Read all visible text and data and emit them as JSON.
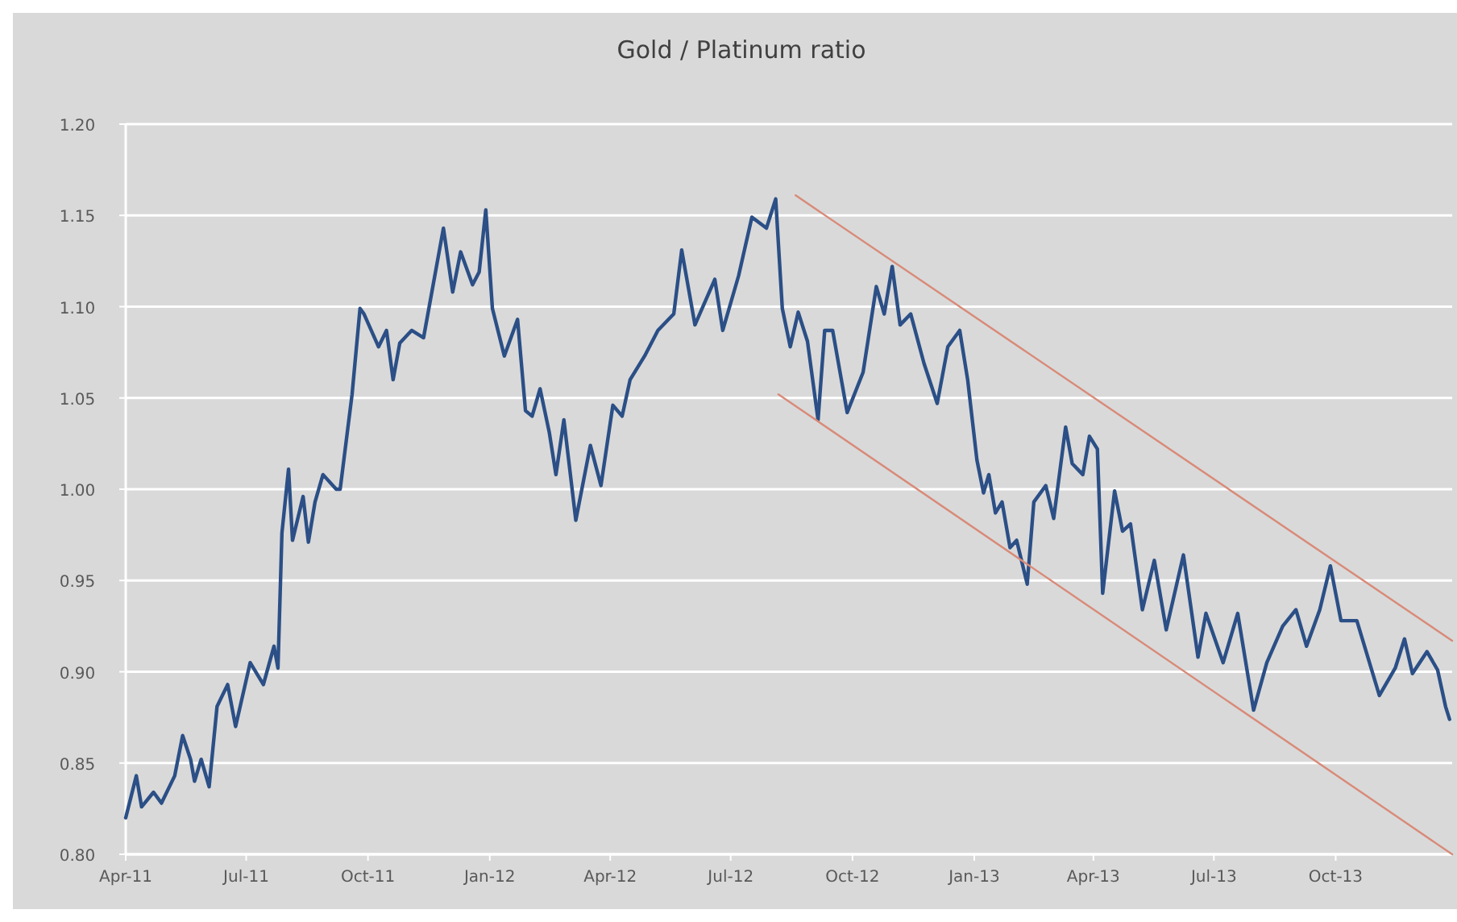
{
  "chart_data": {
    "type": "line",
    "title": "Gold / Platinum ratio",
    "grid": "y",
    "xlim": [
      "2011-04-01",
      "2013-12-28"
    ],
    "xticks": [
      {
        "value": "2011-04-01",
        "label": "Apr-11"
      },
      {
        "value": "2011-07-01",
        "label": "Jul-11"
      },
      {
        "value": "2011-10-01",
        "label": "Oct-11"
      },
      {
        "value": "2012-01-01",
        "label": "Jan-12"
      },
      {
        "value": "2012-04-01",
        "label": "Apr-12"
      },
      {
        "value": "2012-07-01",
        "label": "Jul-12"
      },
      {
        "value": "2012-10-01",
        "label": "Oct-12"
      },
      {
        "value": "2013-01-01",
        "label": "Jan-13"
      },
      {
        "value": "2013-04-01",
        "label": "Apr-13"
      },
      {
        "value": "2013-07-01",
        "label": "Jul-13"
      },
      {
        "value": "2013-10-01",
        "label": "Oct-13"
      }
    ],
    "ylim": [
      0.8,
      1.2
    ],
    "yticks": [
      {
        "value": 0.8,
        "label": "0.80"
      },
      {
        "value": 0.85,
        "label": "0.85"
      },
      {
        "value": 0.9,
        "label": "0.90"
      },
      {
        "value": 0.95,
        "label": "0.95"
      },
      {
        "value": 1.0,
        "label": "1.00"
      },
      {
        "value": 1.05,
        "label": "1.05"
      },
      {
        "value": 1.1,
        "label": "1.10"
      },
      {
        "value": 1.15,
        "label": "1.15"
      },
      {
        "value": 1.2,
        "label": "1.20"
      }
    ],
    "series": [
      {
        "color": "#2b4f86",
        "x": [
          "2011-04-01",
          "2011-04-09",
          "2011-04-13",
          "2011-04-22",
          "2011-04-28",
          "2011-05-08",
          "2011-05-14",
          "2011-05-20",
          "2011-05-23",
          "2011-05-28",
          "2011-06-03",
          "2011-06-09",
          "2011-06-17",
          "2011-06-23",
          "2011-07-04",
          "2011-07-14",
          "2011-07-22",
          "2011-07-25",
          "2011-07-28",
          "2011-08-02",
          "2011-08-05",
          "2011-08-13",
          "2011-08-17",
          "2011-08-22",
          "2011-08-28",
          "2011-09-07",
          "2011-09-10",
          "2011-09-19",
          "2011-09-25",
          "2011-09-28",
          "2011-10-09",
          "2011-10-15",
          "2011-10-20",
          "2011-10-25",
          "2011-11-03",
          "2011-11-12",
          "2011-11-16",
          "2011-11-27",
          "2011-12-04",
          "2011-12-10",
          "2011-12-19",
          "2011-12-24",
          "2011-12-29",
          "2012-01-03",
          "2012-01-12",
          "2012-01-22",
          "2012-01-28",
          "2012-02-02",
          "2012-02-08",
          "2012-02-15",
          "2012-02-20",
          "2012-02-26",
          "2012-03-06",
          "2012-03-17",
          "2012-03-25",
          "2012-04-03",
          "2012-04-10",
          "2012-04-16",
          "2012-04-27",
          "2012-05-07",
          "2012-05-19",
          "2012-05-25",
          "2012-06-04",
          "2012-06-19",
          "2012-06-25",
          "2012-07-07",
          "2012-07-17",
          "2012-07-28",
          "2012-08-04",
          "2012-08-09",
          "2012-08-15",
          "2012-08-21",
          "2012-08-28",
          "2012-09-05",
          "2012-09-10",
          "2012-09-16",
          "2012-09-27",
          "2012-10-09",
          "2012-10-19",
          "2012-10-25",
          "2012-10-31",
          "2012-11-06",
          "2012-11-14",
          "2012-11-24",
          "2012-12-04",
          "2012-12-12",
          "2012-12-21",
          "2012-12-27",
          "2013-01-03",
          "2013-01-08",
          "2013-01-12",
          "2013-01-17",
          "2013-01-22",
          "2013-01-28",
          "2013-02-02",
          "2013-02-10",
          "2013-02-15",
          "2013-02-24",
          "2013-03-02",
          "2013-03-11",
          "2013-03-16",
          "2013-03-24",
          "2013-03-29",
          "2013-04-04",
          "2013-04-08",
          "2013-04-17",
          "2013-04-23",
          "2013-04-29",
          "2013-05-08",
          "2013-05-17",
          "2013-05-26",
          "2013-06-08",
          "2013-06-19",
          "2013-06-25",
          "2013-07-08",
          "2013-07-19",
          "2013-07-31",
          "2013-08-10",
          "2013-08-22",
          "2013-09-01",
          "2013-09-09",
          "2013-09-19",
          "2013-09-27",
          "2013-10-05",
          "2013-10-17",
          "2013-11-03",
          "2013-11-15",
          "2013-11-22",
          "2013-11-28",
          "2013-12-09",
          "2013-12-17",
          "2013-12-23",
          "2013-12-26"
        ],
        "values": [
          0.82,
          0.843,
          0.826,
          0.834,
          0.828,
          0.843,
          0.865,
          0.852,
          0.84,
          0.852,
          0.837,
          0.881,
          0.893,
          0.87,
          0.905,
          0.893,
          0.914,
          0.902,
          0.976,
          1.011,
          0.972,
          0.996,
          0.971,
          0.993,
          1.008,
          1.0,
          1.0,
          1.052,
          1.099,
          1.096,
          1.078,
          1.087,
          1.06,
          1.08,
          1.087,
          1.083,
          1.099,
          1.143,
          1.108,
          1.13,
          1.112,
          1.119,
          1.153,
          1.099,
          1.073,
          1.093,
          1.043,
          1.04,
          1.055,
          1.031,
          1.008,
          1.038,
          0.983,
          1.024,
          1.002,
          1.046,
          1.04,
          1.06,
          1.073,
          1.087,
          1.096,
          1.131,
          1.09,
          1.115,
          1.087,
          1.117,
          1.149,
          1.143,
          1.159,
          1.099,
          1.078,
          1.097,
          1.081,
          1.038,
          1.087,
          1.087,
          1.042,
          1.064,
          1.111,
          1.096,
          1.122,
          1.09,
          1.096,
          1.069,
          1.047,
          1.078,
          1.087,
          1.06,
          1.016,
          0.998,
          1.008,
          0.987,
          0.993,
          0.968,
          0.972,
          0.948,
          0.993,
          1.002,
          0.984,
          1.034,
          1.014,
          1.008,
          1.029,
          1.022,
          0.943,
          0.999,
          0.977,
          0.981,
          0.934,
          0.961,
          0.923,
          0.964,
          0.908,
          0.932,
          0.905,
          0.932,
          0.879,
          0.905,
          0.925,
          0.934,
          0.914,
          0.934,
          0.958,
          0.928,
          0.928,
          0.887,
          0.902,
          0.918,
          0.899,
          0.911,
          0.901,
          0.881,
          0.874
        ]
      },
      {
        "color": "#d98a78",
        "x": [
          "2012-08-19",
          "2013-12-28"
        ],
        "values": [
          1.161,
          0.917
        ]
      },
      {
        "color": "#d98a78",
        "x": [
          "2012-08-06",
          "2013-12-28"
        ],
        "values": [
          1.052,
          0.8
        ]
      }
    ]
  }
}
